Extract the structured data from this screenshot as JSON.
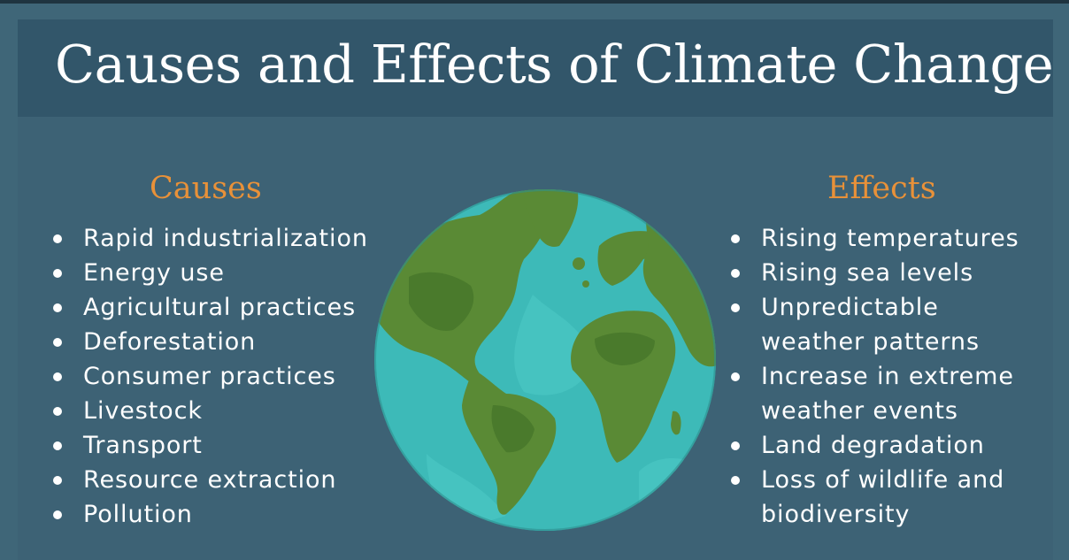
{
  "title": "Causes and Effects of Climate Change",
  "causes": {
    "heading": "Causes",
    "items": [
      "Rapid industrialization",
      "Energy use",
      "Agricultural practices",
      "Deforestation",
      "Consumer practices",
      "Livestock",
      "Transport",
      "Resource extraction",
      "Pollution"
    ]
  },
  "effects": {
    "heading": "Effects",
    "items": [
      [
        "Rising temperatures"
      ],
      [
        "Rising sea levels"
      ],
      [
        "Unpredictable",
        "weather patterns"
      ],
      [
        "Increase in extreme",
        "weather events"
      ],
      [
        "Land degradation"
      ],
      [
        "Loss of wildlife and",
        "biodiversity"
      ]
    ]
  },
  "colors": {
    "background": "#3f6678",
    "title_bar": "#32566a",
    "heading_accent": "#e89139",
    "ocean": "#3dbab8",
    "land": "#5a8a35"
  },
  "illustration": "globe-icon"
}
